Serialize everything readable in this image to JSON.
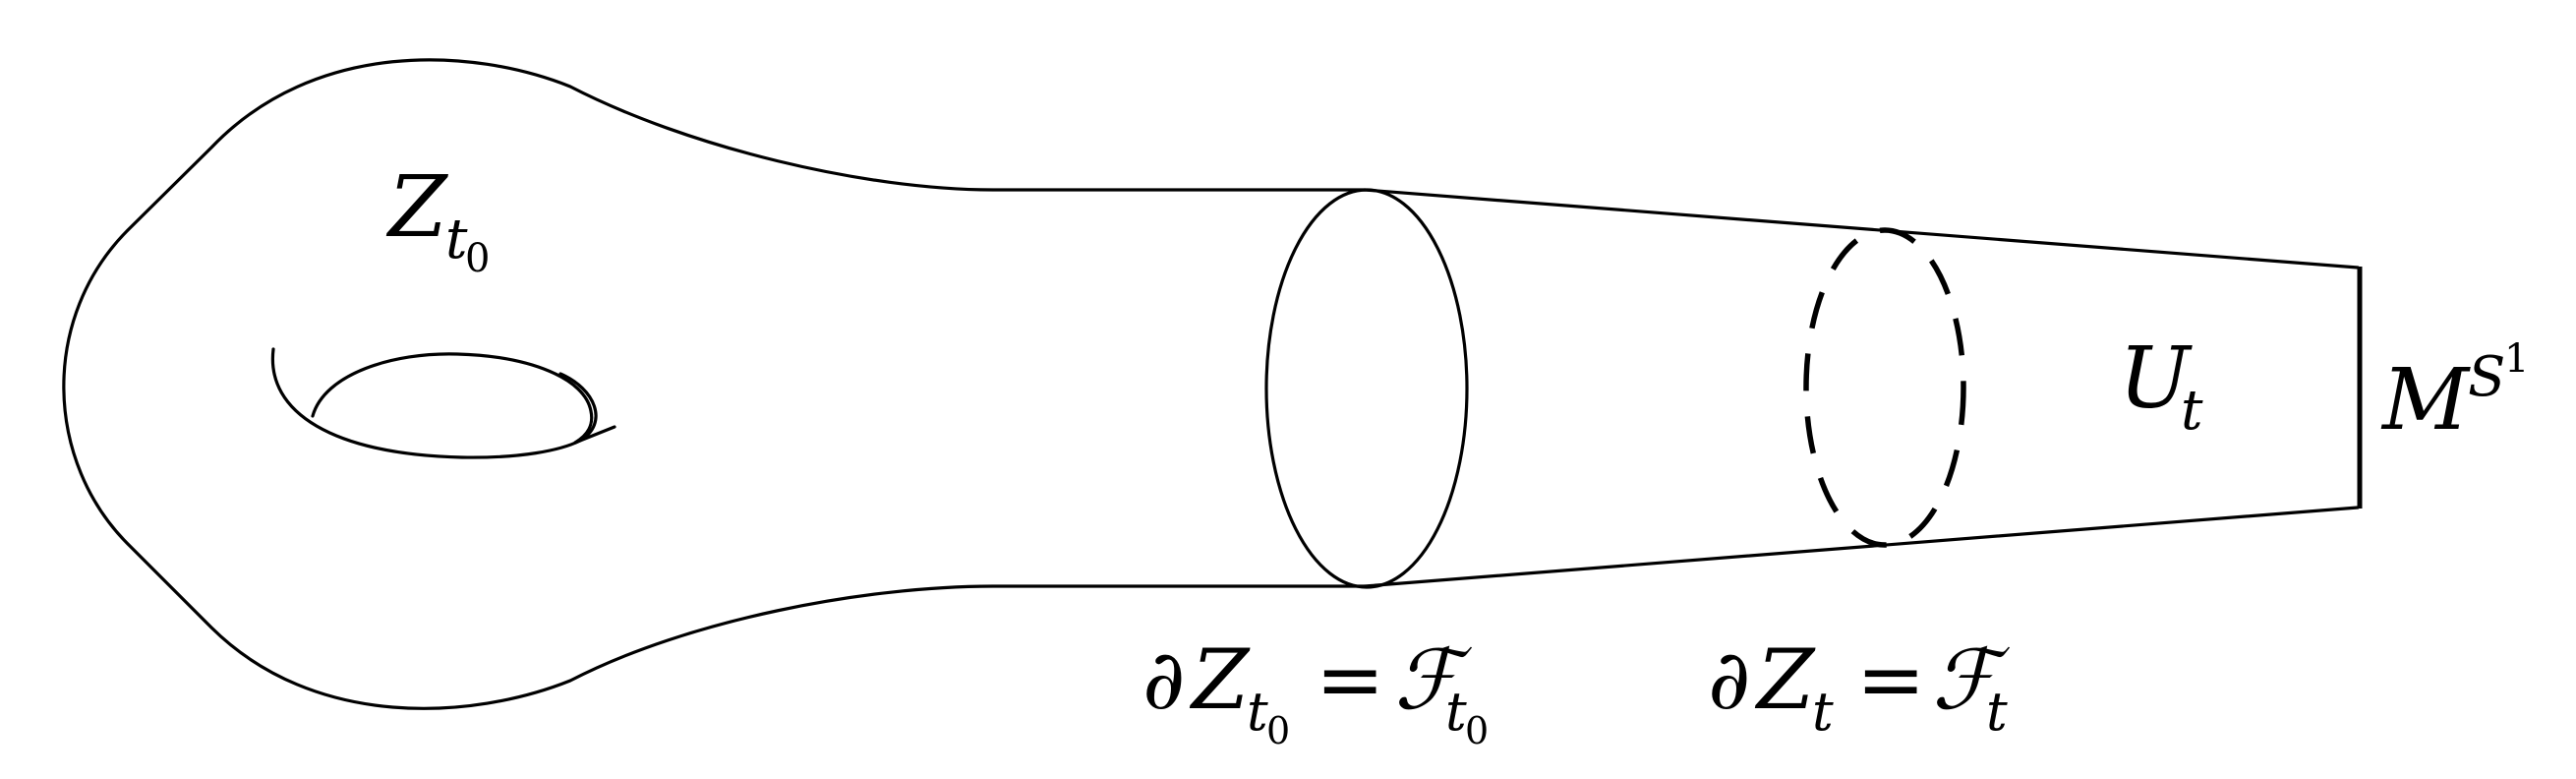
{
  "labels": {
    "z_t0": {
      "main": "Z",
      "sub": "t",
      "subsub": "0"
    },
    "u_t": {
      "main": "U",
      "sub": "t"
    },
    "m_s1": {
      "main": "M",
      "sup": "S",
      "supsup": "1"
    },
    "boundary_t0": {
      "partial": "∂",
      "z": "Z",
      "sub": "t",
      "subsub": "0",
      "eq": "=",
      "f": "ℱ",
      "fsub": "t",
      "fsubsub": "0"
    },
    "boundary_t": {
      "partial": "∂",
      "z": "Z",
      "sub": "t",
      "eq": "=",
      "f": "ℱ",
      "fsub": "t"
    }
  },
  "colors": {
    "ink": "#000000",
    "background": "#ffffff"
  }
}
